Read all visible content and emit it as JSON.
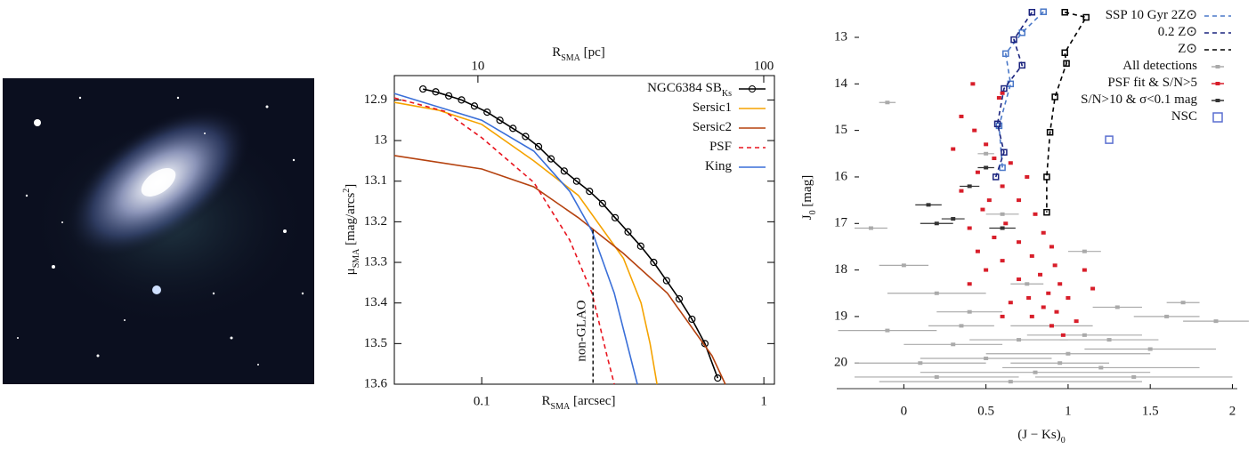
{
  "chart_data": [
    {
      "type": "line",
      "xscale": "log",
      "frame": true,
      "legend": "upper right",
      "xlabel": {
        "text": "R",
        "sub": "SMA",
        "after": " [arcsec]"
      },
      "x2label": {
        "text": "R",
        "sub": "SMA",
        "after": " [pc]"
      },
      "ylabel": {
        "text": "μ",
        "sub": "SMA",
        "after": " [mag/arcs",
        "sup": "2",
        "end": "]"
      },
      "xlim": [
        0.049,
        1.09
      ],
      "xticks": [
        0.1,
        1
      ],
      "x2lim": [
        5.1,
        109
      ],
      "x2ticks": [
        10,
        100
      ],
      "ylim": [
        13.6,
        12.84
      ],
      "yticks": [
        12.9,
        13,
        13.1,
        13.2,
        13.3,
        13.4,
        13.5,
        13.6
      ],
      "annotation": {
        "text": "non-GLAO",
        "x": 0.248,
        "y": 13.22
      },
      "series": [
        {
          "name": "NGC6384 SB",
          "name_sub": "Ks",
          "color": "#000000",
          "marker": "circle",
          "x": [
            0.0619,
            0.0687,
            0.0764,
            0.0848,
            0.0942,
            0.1045,
            0.116,
            0.129,
            0.143,
            0.159,
            0.176,
            0.196,
            0.217,
            0.241,
            0.268,
            0.297,
            0.33,
            0.366,
            0.407,
            0.452,
            0.501,
            0.556,
            0.618,
            0.686
          ],
          "values": [
            12.873,
            12.88,
            12.89,
            12.9,
            12.915,
            12.93,
            12.95,
            12.97,
            12.99,
            13.015,
            13.045,
            13.075,
            13.1,
            13.125,
            13.155,
            13.19,
            13.225,
            13.26,
            13.3,
            13.345,
            13.39,
            13.44,
            13.5,
            13.585
          ]
        },
        {
          "name": "Sersic1",
          "color": "#f5a300",
          "x": [
            0.049,
            0.07,
            0.1,
            0.153,
            0.22,
            0.318,
            0.367,
            0.395,
            0.418
          ],
          "values": [
            12.906,
            12.925,
            12.96,
            13.05,
            13.135,
            13.29,
            13.4,
            13.5,
            13.6
          ]
        },
        {
          "name": "Sersic2",
          "color": "#b5420f",
          "x": [
            0.049,
            0.1,
            0.153,
            0.22,
            0.318,
            0.455,
            0.655,
            0.73
          ],
          "values": [
            13.037,
            13.07,
            13.114,
            13.19,
            13.278,
            13.376,
            13.53,
            13.6
          ]
        },
        {
          "name": "PSF",
          "color": "#e8141e",
          "dash": true,
          "x": [
            0.049,
            0.074,
            0.1,
            0.153,
            0.205,
            0.246,
            0.278,
            0.295
          ],
          "values": [
            12.895,
            12.928,
            12.993,
            13.103,
            13.245,
            13.376,
            13.53,
            13.6
          ]
        },
        {
          "name": "King",
          "color": "#3a6fd8",
          "x": [
            0.049,
            0.1,
            0.153,
            0.205,
            0.246,
            0.295,
            0.356
          ],
          "values": [
            12.884,
            12.95,
            13.026,
            13.125,
            13.223,
            13.376,
            13.6
          ]
        }
      ]
    },
    {
      "type": "scatter",
      "frame": false,
      "legend": "upper right",
      "xlabel": {
        "text": "(J − Ks)",
        "sub": "0"
      },
      "ylabel": {
        "text": "J",
        "sub": "0",
        "after": " [mag]"
      },
      "xlim": [
        -0.3,
        2.03
      ],
      "xticks": [
        0,
        0.5,
        1,
        1.5,
        2
      ],
      "ylim": [
        20.55,
        12.35
      ],
      "yticks": [
        13,
        14,
        15,
        16,
        17,
        18,
        19,
        20
      ],
      "series": [
        {
          "name": "SSP 10 Gyr 2Z⊙",
          "color": "#4a78c8",
          "mode": "line",
          "dash": true,
          "marker": "square",
          "x": [
            0.85,
            0.72,
            0.62,
            0.65,
            0.58,
            0.6
          ],
          "values": [
            12.45,
            12.9,
            13.35,
            14.0,
            14.9,
            15.8
          ]
        },
        {
          "name": "0.2 Z⊙",
          "color": "#1a237e",
          "mode": "line",
          "dash": true,
          "marker": "square",
          "x": [
            0.78,
            0.67,
            0.72,
            0.61,
            0.57,
            0.61,
            0.56
          ],
          "values": [
            12.46,
            13.05,
            13.6,
            14.1,
            14.86,
            15.47,
            16.0
          ]
        },
        {
          "name": "Z⊙",
          "color": "#000000",
          "mode": "line",
          "dash": true,
          "marker": "square",
          "x": [
            0.98,
            1.11,
            0.98,
            0.99,
            0.92,
            0.89,
            0.87,
            0.87
          ],
          "values": [
            12.46,
            12.57,
            13.33,
            13.56,
            14.28,
            15.04,
            16.0,
            16.76
          ]
        },
        {
          "name": "All detections",
          "color": "#aaaaaa",
          "mode": "points",
          "x": [
            0.2,
            0.8,
            1.2,
            0.5,
            1.0,
            0.3,
            1.5,
            0.7,
            1.1,
            -0.1,
            0.9,
            1.6,
            0.4,
            1.3,
            0.2,
            1.7,
            0.0,
            -0.2,
            0.6,
            1.1,
            0.5,
            -0.1,
            1.9,
            0.1,
            1.4,
            0.65,
            0.95,
            0.35,
            1.25,
            0.75
          ],
          "values": [
            20.3,
            20.2,
            20.1,
            19.9,
            19.8,
            19.6,
            19.7,
            19.5,
            19.4,
            19.3,
            19.2,
            19.0,
            18.9,
            18.8,
            18.5,
            18.7,
            17.9,
            17.1,
            16.8,
            17.6,
            15.5,
            14.4,
            19.1,
            20.0,
            20.3,
            20.4,
            20.0,
            19.2,
            19.5,
            18.3
          ],
          "xerr": [
            0.5,
            0.7,
            0.6,
            0.4,
            0.5,
            0.3,
            0.4,
            0.3,
            0.35,
            0.3,
            0.25,
            0.2,
            0.2,
            0.15,
            0.3,
            0.1,
            0.15,
            0.1,
            0.1,
            0.1,
            0.05,
            0.05,
            0.2,
            0.4,
            0.6,
            0.8,
            0.3,
            0.2,
            0.3,
            0.1
          ]
        },
        {
          "name": "PSF fit & S/N>5",
          "color": "#d81e2a",
          "mode": "points",
          "x": [
            0.6,
            0.58,
            0.42,
            0.35,
            0.43,
            0.5,
            0.3,
            0.55,
            0.65,
            0.45,
            0.75,
            0.6,
            0.35,
            0.52,
            0.7,
            0.48,
            0.8,
            0.62,
            0.4,
            0.85,
            0.55,
            0.7,
            0.9,
            0.45,
            0.78,
            0.6,
            0.92,
            0.5,
            0.83,
            0.7,
            0.95,
            0.4,
            0.88,
            0.76,
            1.0,
            0.65,
            0.85,
            0.93,
            0.78,
            1.05,
            0.9,
            0.6,
            1.1,
            1.15,
            0.97
          ],
          "values": [
            14.2,
            14.3,
            14.0,
            14.7,
            15.0,
            15.3,
            15.4,
            15.6,
            15.7,
            15.9,
            16.0,
            16.2,
            16.3,
            16.5,
            16.5,
            16.7,
            16.8,
            17.0,
            17.1,
            17.2,
            17.3,
            17.4,
            17.5,
            17.6,
            17.7,
            17.8,
            17.9,
            18.0,
            18.1,
            18.2,
            18.3,
            18.3,
            18.5,
            18.6,
            18.6,
            18.7,
            18.8,
            18.9,
            19.0,
            19.1,
            19.2,
            19.0,
            18.0,
            18.4,
            19.4
          ]
        },
        {
          "name": "S/N>10 & σ<0.1 mag",
          "color": "#333333",
          "mode": "points",
          "x": [
            0.15,
            0.4,
            0.6,
            0.2,
            0.5,
            0.3
          ],
          "values": [
            16.6,
            16.2,
            17.1,
            17.0,
            15.8,
            16.9
          ],
          "xerr": [
            0.08,
            0.06,
            0.08,
            0.1,
            0.05,
            0.07
          ]
        },
        {
          "name": "NSC",
          "color": "#5a6fd0",
          "mode": "points",
          "marker": "square",
          "x": [
            1.25
          ],
          "values": [
            15.2
          ]
        }
      ]
    }
  ]
}
